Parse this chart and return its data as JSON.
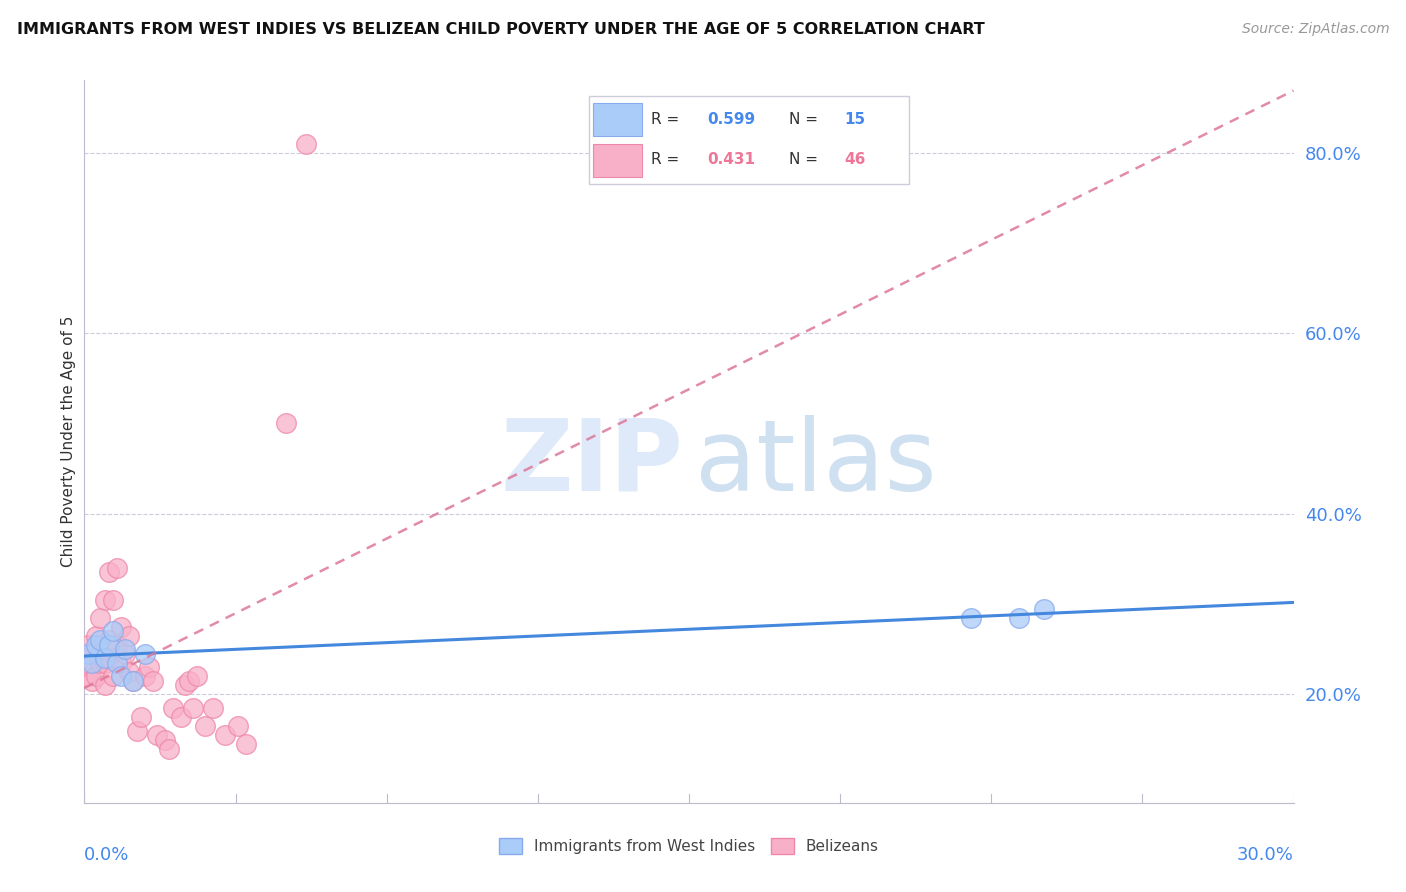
{
  "title": "IMMIGRANTS FROM WEST INDIES VS BELIZEAN CHILD POVERTY UNDER THE AGE OF 5 CORRELATION CHART",
  "source": "Source: ZipAtlas.com",
  "ylabel": "Child Poverty Under the Age of 5",
  "legend_label1": "Immigrants from West Indies",
  "legend_label2": "Belizeans",
  "blue_scatter": "#aaccf8",
  "blue_edge": "#88aaee",
  "pink_scatter": "#f8b0c8",
  "pink_edge": "#ee88a8",
  "trend_blue_color": "#4488dd",
  "trend_pink_color": "#dd7799",
  "xmin": 0.0,
  "xmax": 0.3,
  "ymin": 0.08,
  "ymax": 0.88,
  "yticks": [
    0.2,
    0.4,
    0.6,
    0.8
  ],
  "ytick_labels": [
    "20.0%",
    "40.0%",
    "60.0%",
    "80.0%"
  ],
  "west_indies_x": [
    0.001,
    0.002,
    0.003,
    0.004,
    0.005,
    0.006,
    0.007,
    0.008,
    0.009,
    0.01,
    0.012,
    0.015,
    0.22,
    0.232,
    0.238
  ],
  "west_indies_y": [
    0.245,
    0.235,
    0.255,
    0.26,
    0.24,
    0.255,
    0.27,
    0.235,
    0.22,
    0.25,
    0.215,
    0.245,
    0.285,
    0.285,
    0.295
  ],
  "belizeans_x": [
    0.0005,
    0.001,
    0.001,
    0.002,
    0.002,
    0.003,
    0.003,
    0.004,
    0.004,
    0.005,
    0.005,
    0.005,
    0.006,
    0.006,
    0.006,
    0.007,
    0.007,
    0.008,
    0.008,
    0.009,
    0.009,
    0.01,
    0.011,
    0.011,
    0.012,
    0.013,
    0.014,
    0.015,
    0.016,
    0.017,
    0.018,
    0.02,
    0.021,
    0.022,
    0.024,
    0.025,
    0.026,
    0.027,
    0.028,
    0.03,
    0.032,
    0.035,
    0.038,
    0.04,
    0.05,
    0.055
  ],
  "belizeans_y": [
    0.22,
    0.235,
    0.255,
    0.215,
    0.245,
    0.22,
    0.265,
    0.235,
    0.285,
    0.21,
    0.235,
    0.305,
    0.24,
    0.26,
    0.335,
    0.22,
    0.305,
    0.255,
    0.34,
    0.235,
    0.275,
    0.245,
    0.225,
    0.265,
    0.215,
    0.16,
    0.175,
    0.22,
    0.23,
    0.215,
    0.155,
    0.15,
    0.14,
    0.185,
    0.175,
    0.21,
    0.215,
    0.185,
    0.22,
    0.165,
    0.185,
    0.155,
    0.165,
    0.145,
    0.5,
    0.81
  ],
  "title_fontsize": 11.5,
  "source_fontsize": 10,
  "tick_fontsize": 13,
  "ylabel_fontsize": 11,
  "legend_fontsize": 11,
  "watermark_zip_color": "#c8ddf5",
  "watermark_atlas_color": "#b0cce8"
}
